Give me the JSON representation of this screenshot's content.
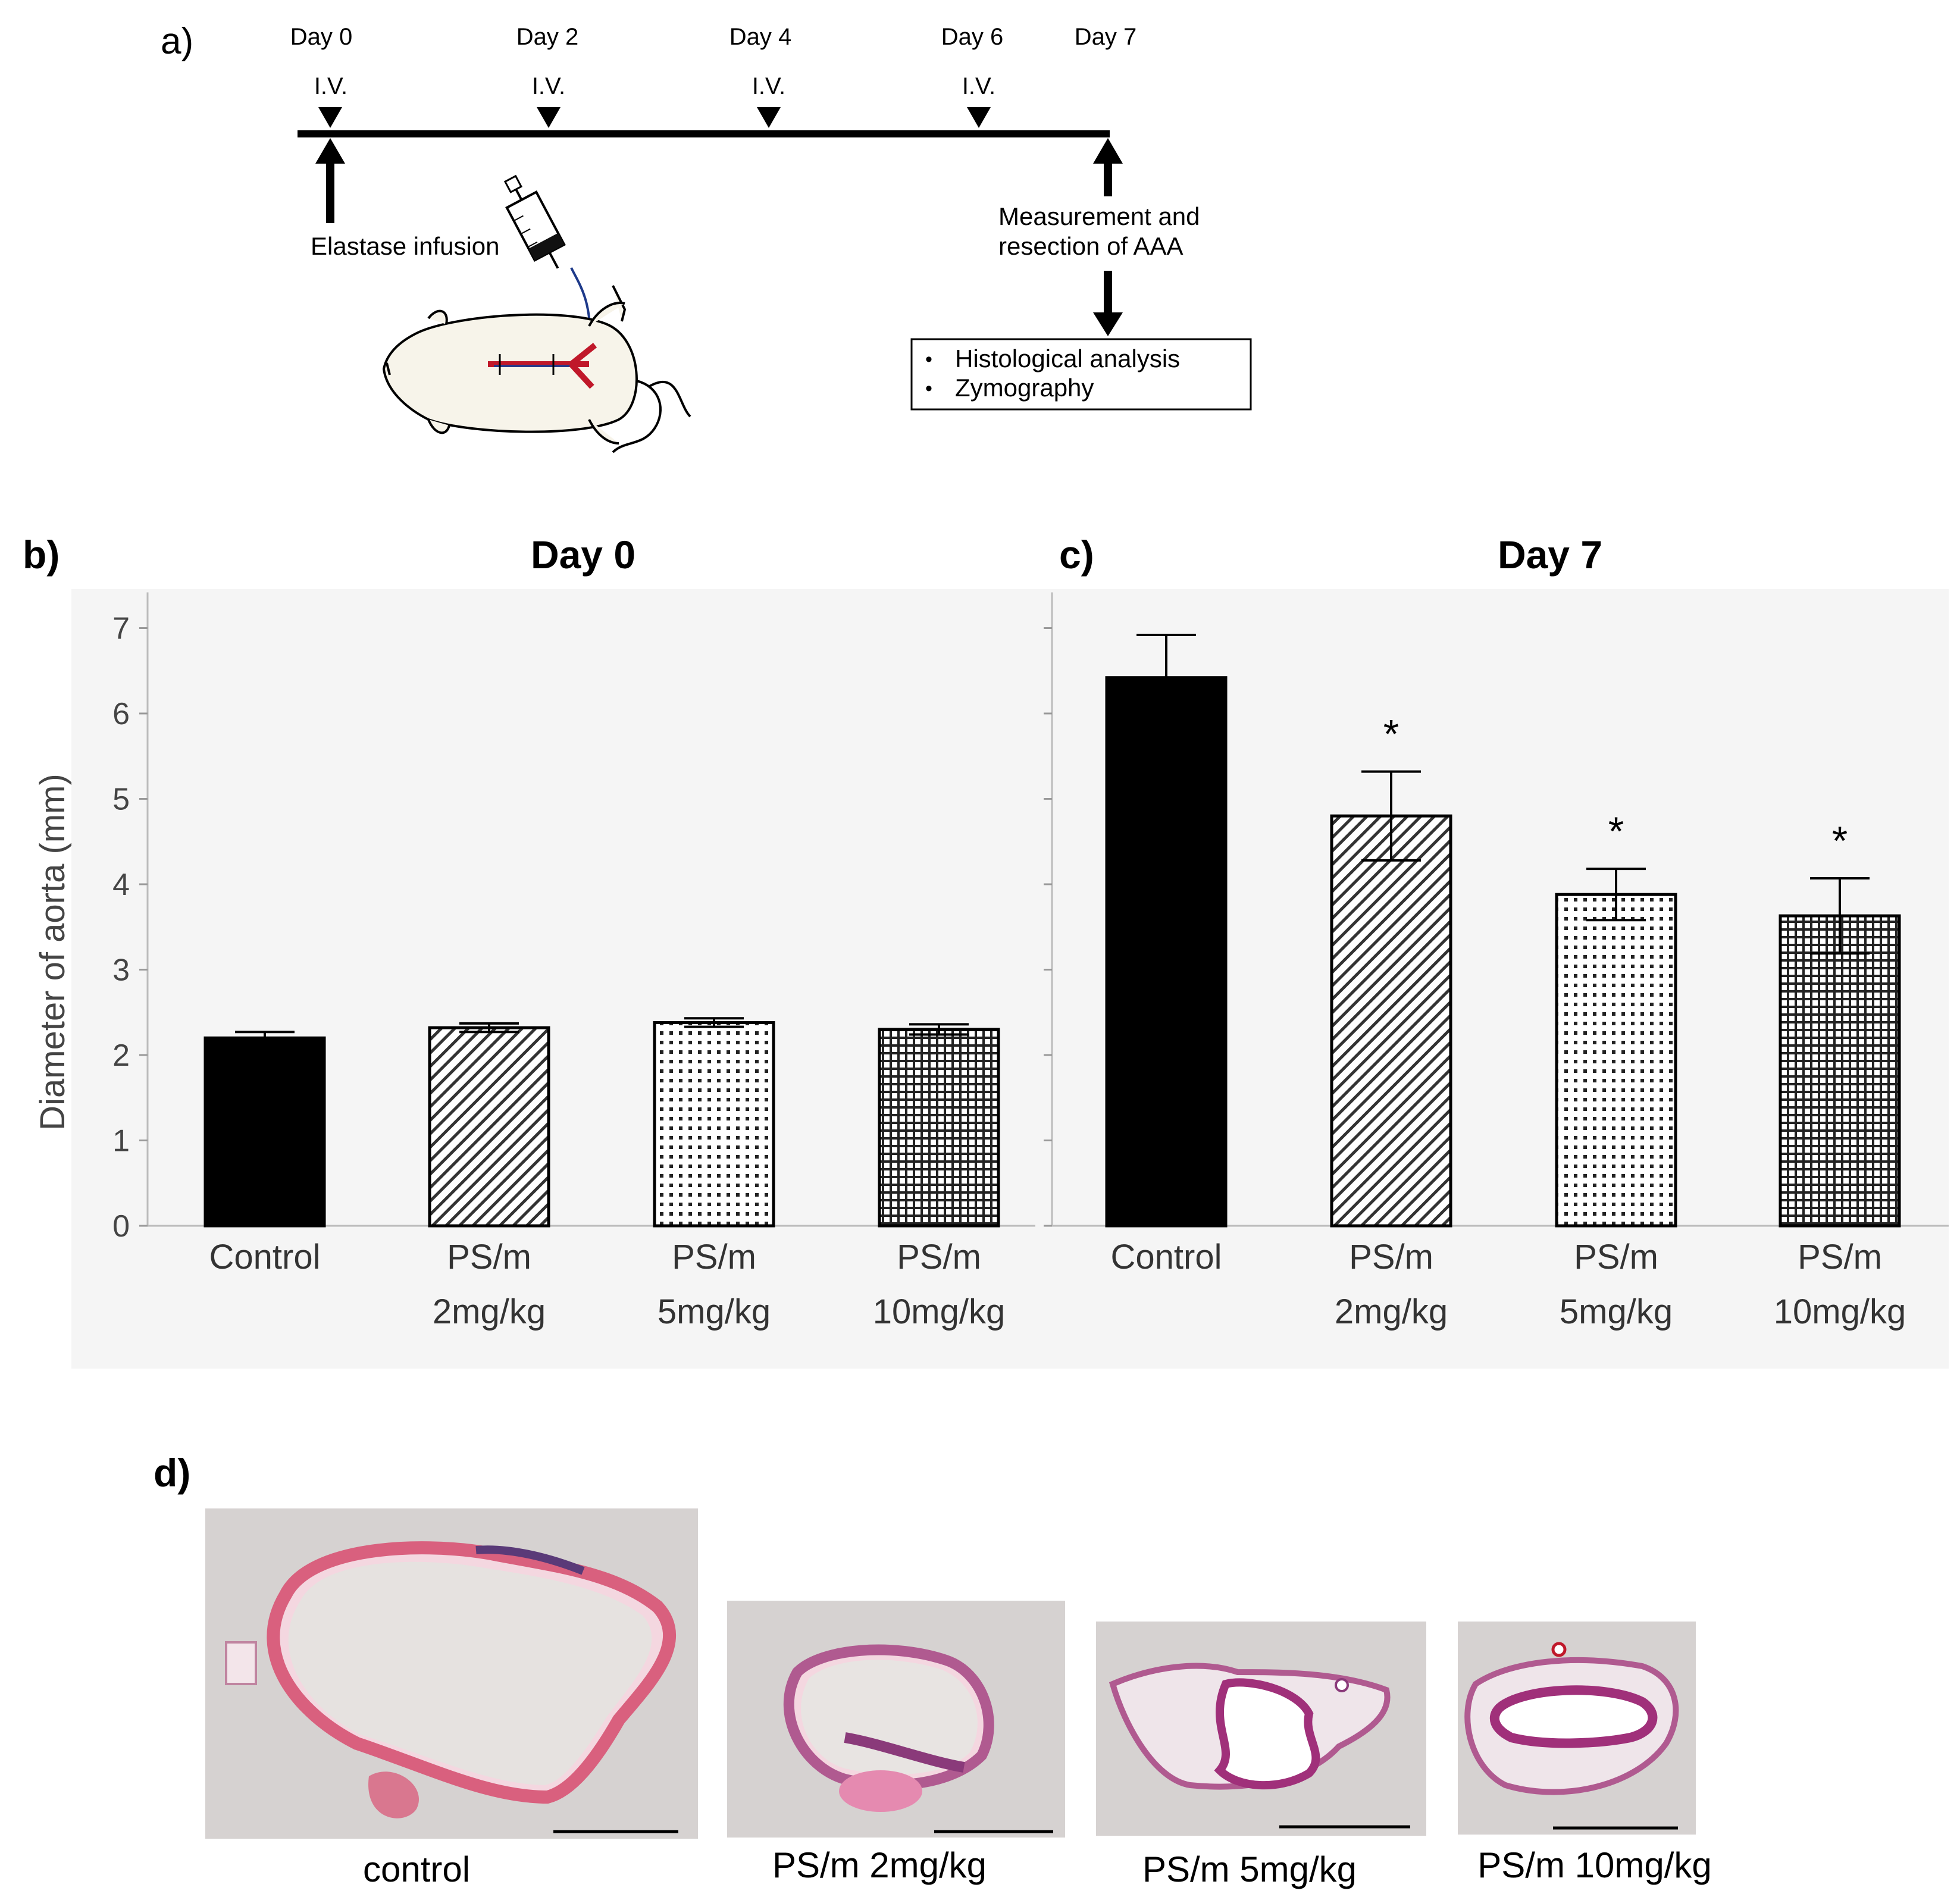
{
  "panel_a": {
    "label": "a)",
    "days": [
      "Day 0",
      "Day 2",
      "Day 4",
      "Day 6",
      "Day 7"
    ],
    "iv_label": "I.V.",
    "elastase": "Elastase infusion",
    "measurement_line1": "Measurement and",
    "measurement_line2": "resection of AAA",
    "analysis_items": [
      "Histological analysis",
      "Zymography"
    ]
  },
  "chart_data": [
    {
      "panel_label": "b)",
      "type": "bar",
      "title": "Day 0",
      "ylabel": "Diameter of aorta (mm)",
      "ylim": [
        0,
        7
      ],
      "yticks": [
        "0",
        "1",
        "2",
        "3",
        "4",
        "5",
        "6",
        "7"
      ],
      "categories": [
        [
          "Control"
        ],
        [
          "PS/m",
          "2mg/kg"
        ],
        [
          "PS/m",
          "5mg/kg"
        ],
        [
          "PS/m",
          "10mg/kg"
        ]
      ],
      "values": [
        2.2,
        2.32,
        2.38,
        2.3
      ],
      "errors": [
        0.07,
        0.05,
        0.05,
        0.06
      ],
      "patterns": [
        "solid",
        "diagonal",
        "dots",
        "grid"
      ],
      "annotations": [
        "",
        "",
        "",
        ""
      ]
    },
    {
      "panel_label": "c)",
      "type": "bar",
      "title": "Day 7",
      "ylabel": "",
      "ylim": [
        0,
        7
      ],
      "yticks": [
        "0",
        "1",
        "2",
        "3",
        "4",
        "5",
        "6",
        "7"
      ],
      "categories": [
        [
          "Control"
        ],
        [
          "PS/m",
          "2mg/kg"
        ],
        [
          "PS/m",
          "5mg/kg"
        ],
        [
          "PS/m",
          "10mg/kg"
        ]
      ],
      "values": [
        6.42,
        4.8,
        3.88,
        3.63
      ],
      "errors": [
        0.5,
        0.52,
        0.3,
        0.44
      ],
      "patterns": [
        "solid",
        "diagonal",
        "dots",
        "grid"
      ],
      "annotations": [
        "",
        "*",
        "*",
        "*"
      ]
    }
  ],
  "panel_d": {
    "label": "d)",
    "captions": [
      "control",
      "PS/m 2mg/kg",
      "PS/m 5mg/kg",
      "PS/m 10mg/kg"
    ]
  },
  "colors": {
    "bar_fill": "#000000",
    "chart_background": "#f5f5f5",
    "tissue_background": "#d6d2d1",
    "tissue_wall": "#d9607e",
    "tissue_dark": "#5a3a78",
    "vessel_red": "#c0182a"
  }
}
